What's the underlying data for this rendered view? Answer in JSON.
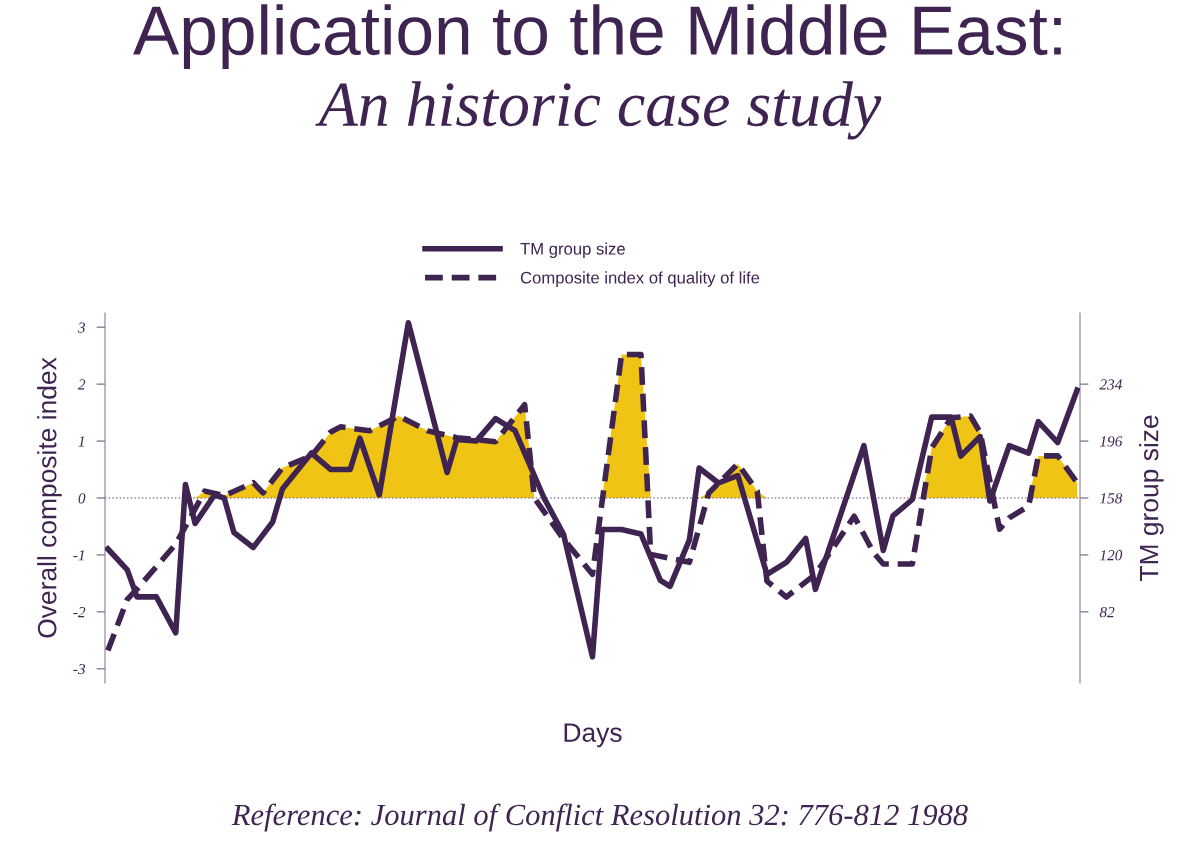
{
  "chart_data": {
    "type": "line",
    "title": "Application to the Middle East:",
    "subtitle": "An historic case study",
    "xlabel": "Days",
    "ylabel": "Overall composite index",
    "y2label": "TM group size",
    "annotations": [
      "Reference: Journal of Conflict Resolution 32: 776-812 1988"
    ],
    "categories": [
      null,
      null,
      null,
      null,
      null,
      null,
      null,
      null,
      null,
      null,
      null,
      null,
      null,
      null,
      null,
      null,
      null,
      null,
      null,
      null,
      null,
      null,
      null,
      null,
      null,
      null,
      null,
      null,
      null,
      null,
      null,
      null,
      null,
      null,
      null,
      null,
      null,
      null,
      null,
      null,
      null,
      null,
      null,
      null,
      null,
      null,
      null,
      null,
      null,
      null,
      null,
      null,
      null,
      null,
      null,
      null,
      null,
      null,
      null,
      null,
      null,
      null,
      null,
      null,
      null,
      null,
      null,
      null,
      null,
      null,
      null,
      null,
      null,
      null,
      null,
      null,
      null,
      null,
      null,
      null,
      null,
      null,
      null,
      null,
      null,
      null,
      null,
      null,
      null,
      null,
      null,
      null,
      null,
      null,
      null,
      null,
      null,
      null,
      null,
      null,
      null
    ],
    "ylim": [
      -3.25,
      3.25
    ],
    "yticks": [
      {
        "value": -3,
        "label": "-3"
      },
      {
        "value": -2,
        "label": "-2"
      },
      {
        "value": -1,
        "label": "-1"
      },
      0,
      1,
      2,
      3
    ],
    "y2lim": [
      34.5,
      281.5
    ],
    "y2ticks": [
      82,
      120,
      158,
      196,
      234
    ],
    "grid": false,
    "tick_labels": "y",
    "legend": "top",
    "ref_lines": [
      {
        "axis": "y",
        "value": 0,
        "color": "#8a7d94",
        "line_style": "dotted"
      }
    ],
    "series": [
      {
        "type": "area",
        "color": "#f0c414",
        "values": [
          null,
          null,
          null,
          null,
          null,
          null,
          null,
          null,
          null,
          0,
          0.12,
          null,
          0.04,
          null,
          null,
          0.27,
          0.09,
          null,
          0.53,
          null,
          null,
          0.74,
          null,
          1.16,
          1.25,
          null,
          null,
          1.18,
          null,
          null,
          1.44,
          null,
          null,
          1.18,
          null,
          null,
          1.06,
          null,
          null,
          null,
          0.99,
          null,
          null,
          1.64,
          0.0,
          null,
          null,
          null,
          null,
          null,
          null,
          0,
          null,
          2.52,
          null,
          2.52,
          0,
          null,
          null,
          null,
          null,
          0,
          0.09,
          null,
          null,
          0.6,
          null,
          0.12,
          0,
          null,
          null,
          null,
          null,
          null,
          null,
          null,
          null,
          null,
          null,
          null,
          null,
          null,
          null,
          null,
          0,
          0.88,
          null,
          1.41,
          null,
          1.44,
          1.15,
          0,
          null,
          null,
          null,
          0,
          0.74,
          null,
          0.74,
          null,
          0.27
        ]
      },
      {
        "name": "TM group size",
        "axis": "y2",
        "color": "#3f2452",
        "line_style": "solid",
        "values": [
          124,
          null,
          110,
          92,
          null,
          92,
          null,
          68,
          167,
          141,
          null,
          160,
          158,
          135,
          null,
          125,
          null,
          142,
          164,
          null,
          null,
          188,
          null,
          177,
          null,
          177,
          198,
          null,
          160,
          null,
          null,
          275,
          null,
          null,
          null,
          175,
          197,
          null,
          196,
          null,
          211,
          null,
          203,
          null,
          null,
          158,
          null,
          134,
          null,
          null,
          52,
          137,
          null,
          137,
          null,
          134,
          null,
          103,
          99,
          null,
          130,
          178,
          null,
          168,
          null,
          173,
          null,
          null,
          107,
          null,
          115,
          null,
          131,
          97,
          null,
          null,
          null,
          null,
          193,
          null,
          123,
          146,
          null,
          157,
          null,
          212,
          null,
          212,
          186,
          null,
          199,
          156,
          null,
          193,
          null,
          188,
          209,
          null,
          195,
          null,
          230
        ]
      },
      {
        "name": "Composite index of quality of life",
        "color": "#3f2452",
        "line_style": "dashed",
        "values": [
          -2.68,
          null,
          -1.78,
          -1.6,
          null,
          null,
          null,
          -0.81,
          null,
          null,
          0.12,
          null,
          0.04,
          null,
          null,
          0.27,
          0.09,
          null,
          0.53,
          null,
          null,
          0.74,
          null,
          1.16,
          1.25,
          null,
          null,
          1.18,
          null,
          null,
          1.44,
          null,
          null,
          1.18,
          null,
          null,
          1.06,
          null,
          null,
          null,
          0.99,
          null,
          null,
          1.64,
          0.0,
          null,
          null,
          -0.72,
          null,
          null,
          -1.34,
          null,
          null,
          2.52,
          null,
          2.52,
          -0.99,
          null,
          null,
          null,
          -1.13,
          null,
          0.09,
          null,
          null,
          0.6,
          null,
          0.12,
          -1.46,
          null,
          -1.74,
          null,
          null,
          -1.34,
          null,
          null,
          null,
          -0.32,
          null,
          -0.96,
          -1.16,
          null,
          null,
          -1.16,
          null,
          0.88,
          null,
          1.41,
          null,
          1.44,
          1.15,
          null,
          -0.55,
          -0.35,
          null,
          -0.14,
          0.74,
          null,
          0.74,
          null,
          0.27
        ]
      }
    ]
  }
}
